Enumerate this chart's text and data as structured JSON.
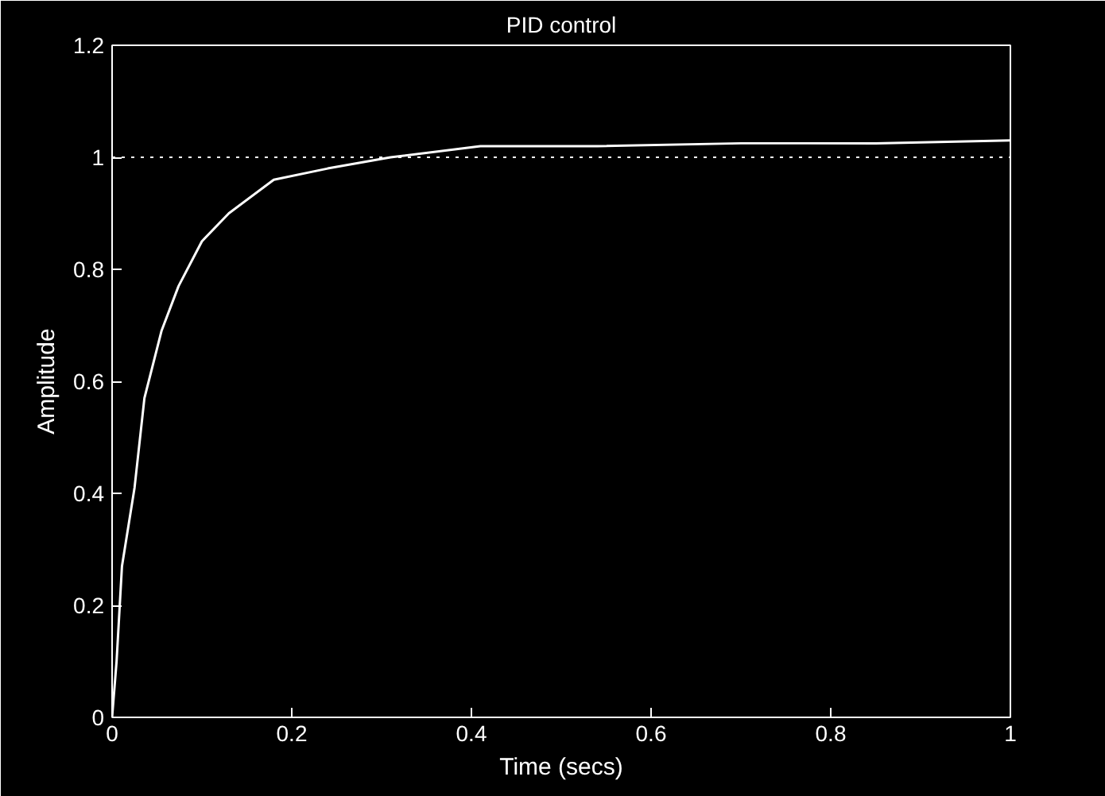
{
  "chart_data": {
    "type": "line",
    "title": "PID control",
    "xlabel": "Time (secs)",
    "ylabel": "Amplitude",
    "x": [
      0,
      0.005,
      0.011,
      0.025,
      0.036,
      0.055,
      0.074,
      0.1,
      0.13,
      0.18,
      0.24,
      0.31,
      0.41,
      0.54,
      0.7,
      0.85,
      1.0
    ],
    "series": [
      {
        "color": "#ffffff",
        "values": [
          0,
          0.1,
          0.27,
          0.41,
          0.57,
          0.69,
          0.77,
          0.85,
          0.9,
          0.96,
          0.98,
          1.0,
          1.02,
          1.02,
          1.025,
          1.025,
          1.03
        ]
      }
    ],
    "xlim": [
      0,
      1
    ],
    "ylim": [
      0,
      1.2
    ],
    "xticks": [
      0,
      0.2,
      0.4,
      0.6,
      0.8,
      1
    ],
    "yticks": [
      0,
      0.2,
      0.4,
      0.6,
      0.8,
      1,
      1.2
    ],
    "ref_lines": [
      {
        "axis": "y",
        "value": 1,
        "color": "#ffffff",
        "line_style": "dotted"
      }
    ],
    "grid": false,
    "marker": "none",
    "line_style": "solid"
  }
}
